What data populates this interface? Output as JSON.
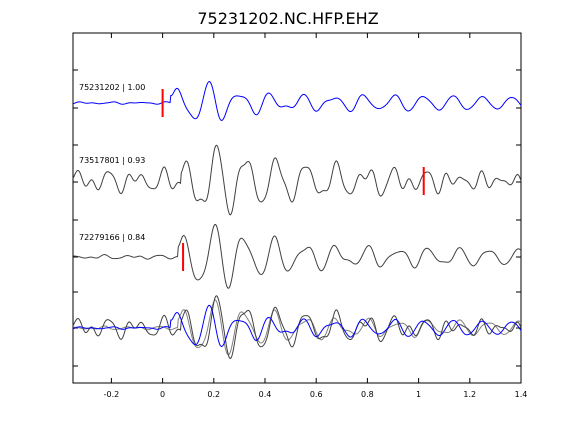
{
  "chart_data": {
    "type": "line",
    "title": "75231202.NC.HFP.EHZ",
    "xlabel": "",
    "ylabel": "",
    "xlim": [
      -0.35,
      1.4
    ],
    "xticks": [
      "-0.2",
      "0",
      "0.2",
      "0.4",
      "0.6",
      "0.8",
      "1",
      "1.2",
      "1.4"
    ],
    "xtick_values": [
      -0.2,
      0,
      0.2,
      0.4,
      0.6,
      0.8,
      1,
      1.2,
      1.4
    ],
    "grid": false,
    "legend": "none",
    "traces": [
      {
        "label": "75231202 | 1.00",
        "color": "#0000ff",
        "pick_time": 0.0
      },
      {
        "label": "73517801 | 0.93",
        "color": "#404040",
        "pick_time": 1.02
      },
      {
        "label": "72279166 | 0.84",
        "color": "#404040",
        "pick_time": 0.08
      }
    ],
    "overlay": {
      "colors": [
        "#0000ff",
        "#404040",
        "#808080"
      ]
    },
    "pick_color": "#ff0000"
  }
}
